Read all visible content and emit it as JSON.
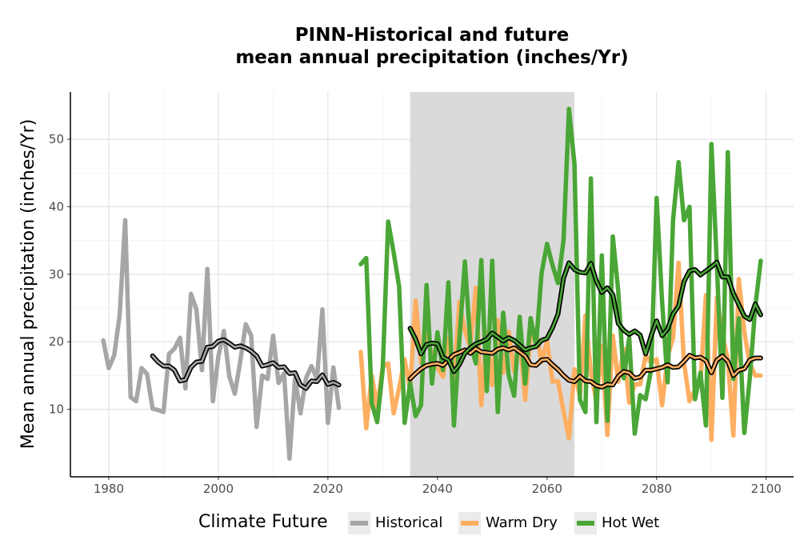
{
  "chart_data": {
    "type": "line",
    "title": "PINN-Historical and future",
    "subtitle": "mean annual precipitation (inches/Yr)",
    "xlabel": "",
    "ylabel": "Mean annual precipitation (inches/Yr)",
    "xlim": [
      1973,
      2105
    ],
    "ylim": [
      0,
      57
    ],
    "x_ticks": [
      1980,
      2000,
      2020,
      2040,
      2060,
      2080,
      2100
    ],
    "y_ticks": [
      10,
      20,
      30,
      40,
      50
    ],
    "grid": true,
    "shaded_period": [
      2035,
      2065
    ],
    "legend": {
      "title": "Climate Future",
      "position": "bottom",
      "entries": [
        "Historical",
        "Warm Dry",
        "Hot Wet"
      ]
    },
    "colors": {
      "historical": "#a6a6a6",
      "warm_dry": "#fdae61",
      "hot_wet": "#4aa636",
      "smooth": "#000000",
      "shade": "#dadada"
    },
    "series": [
      {
        "name": "Historical",
        "color": "#a6a6a6",
        "x": [
          1979,
          1980,
          1981,
          1982,
          1983,
          1984,
          1985,
          1986,
          1987,
          1988,
          1989,
          1990,
          1991,
          1992,
          1993,
          1994,
          1995,
          1996,
          1997,
          1998,
          1999,
          2000,
          2001,
          2002,
          2003,
          2004,
          2005,
          2006,
          2007,
          2008,
          2009,
          2010,
          2011,
          2012,
          2013,
          2014,
          2015,
          2016,
          2017,
          2018,
          2019,
          2020,
          2021,
          2022
        ],
        "values": [
          20.2,
          16.1,
          18,
          24,
          38,
          11.8,
          11.2,
          16.1,
          15.2,
          10.1,
          9.9,
          9.6,
          18.2,
          19,
          20.6,
          13.1,
          27.1,
          24.8,
          15.8,
          30.8,
          11.2,
          17.8,
          21.6,
          14.9,
          12.3,
          17.1,
          22.6,
          20.9,
          7.4,
          15,
          14.5,
          20.9,
          13.9,
          15.3,
          2.7,
          14.6,
          9.4,
          14.6,
          16.4,
          14.5,
          24.8,
          8,
          16.2,
          10.2
        ]
      },
      {
        "name": "Historical (smoothed)",
        "color": "#000000",
        "x": [
          1988,
          1989,
          1990,
          1991,
          1992,
          1993,
          1994,
          1995,
          1996,
          1997,
          1998,
          1999,
          2000,
          2001,
          2002,
          2003,
          2004,
          2005,
          2006,
          2007,
          2008,
          2009,
          2010,
          2011,
          2012,
          2013,
          2014,
          2015,
          2016,
          2017,
          2018,
          2019,
          2020,
          2021,
          2022
        ],
        "values": [
          17.9,
          17,
          16.4,
          16.4,
          15.8,
          14.2,
          14.4,
          16.2,
          17,
          17.1,
          19.2,
          19.3,
          20.1,
          20.3,
          19.8,
          19.2,
          19.4,
          19.1,
          18.6,
          17.9,
          16.4,
          16.6,
          16.9,
          16.2,
          16.3,
          15.3,
          15.4,
          13.6,
          13.1,
          14.2,
          14.1,
          15.1,
          13.7,
          14,
          13.6
        ]
      },
      {
        "name": "Warm Dry",
        "color": "#fdae61",
        "x": [
          2026,
          2027,
          2028,
          2029,
          2030,
          2031,
          2032,
          2033,
          2034,
          2035,
          2036,
          2037,
          2038,
          2039,
          2040,
          2041,
          2042,
          2043,
          2044,
          2045,
          2046,
          2047,
          2048,
          2049,
          2050,
          2051,
          2052,
          2053,
          2054,
          2055,
          2056,
          2057,
          2058,
          2059,
          2060,
          2061,
          2062,
          2063,
          2064,
          2065,
          2066,
          2067,
          2068,
          2069,
          2070,
          2071,
          2072,
          2073,
          2074,
          2075,
          2076,
          2077,
          2078,
          2079,
          2080,
          2081,
          2082,
          2083,
          2084,
          2085,
          2086,
          2087,
          2088,
          2089,
          2090,
          2091,
          2092,
          2093,
          2094,
          2095,
          2096,
          2097,
          2098,
          2099
        ],
        "values": [
          18.5,
          7.2,
          15,
          10.3,
          16.3,
          16.8,
          9.4,
          13.2,
          17.4,
          12.8,
          26.1,
          16.9,
          21.2,
          18,
          16.2,
          14.8,
          20.5,
          14.2,
          25.9,
          21.6,
          19.2,
          28,
          10.6,
          21.4,
          13.6,
          23.2,
          15.4,
          21.5,
          15.6,
          20.6,
          11.4,
          21,
          21.4,
          17,
          20.1,
          14.1,
          14.2,
          9.7,
          5.7,
          15.9,
          11.8,
          23.9,
          15.4,
          11.2,
          19.4,
          6.2,
          20.9,
          14.1,
          18.9,
          11,
          13.7,
          13.7,
          18,
          16.9,
          17.4,
          10.6,
          17.8,
          20.6,
          31.7,
          16.9,
          11.2,
          12.9,
          14.1,
          26.9,
          5.5,
          26.6,
          20.9,
          17.5,
          6.1,
          29.3,
          21.4,
          16.8,
          15,
          15
        ]
      },
      {
        "name": "Warm Dry (smoothed)",
        "color": "#000000",
        "x": [
          2035,
          2036,
          2037,
          2038,
          2039,
          2040,
          2041,
          2042,
          2043,
          2044,
          2045,
          2046,
          2047,
          2048,
          2049,
          2050,
          2051,
          2052,
          2053,
          2054,
          2055,
          2056,
          2057,
          2058,
          2059,
          2060,
          2061,
          2062,
          2063,
          2064,
          2065,
          2066,
          2067,
          2068,
          2069,
          2070,
          2071,
          2072,
          2073,
          2074,
          2075,
          2076,
          2077,
          2078,
          2079,
          2080,
          2081,
          2082,
          2083,
          2084,
          2085,
          2086,
          2087,
          2088,
          2089,
          2090,
          2091,
          2092,
          2093,
          2094,
          2095,
          2096,
          2097,
          2098,
          2099
        ],
        "values": [
          14.5,
          15.3,
          16,
          16.5,
          16.7,
          16.8,
          16.5,
          17.3,
          18.1,
          18.4,
          18.8,
          18.3,
          19,
          18.5,
          18.4,
          18.3,
          18.9,
          19.1,
          18.8,
          19.1,
          18.5,
          17.9,
          16.6,
          16.5,
          17.3,
          17.4,
          16.6,
          15.9,
          15,
          14.3,
          14.1,
          14.9,
          14.2,
          14.1,
          13.5,
          13.3,
          13.7,
          13.6,
          14.9,
          15.6,
          15.4,
          14.6,
          14.8,
          15.8,
          15.8,
          16,
          16.2,
          16.6,
          16.2,
          16.3,
          17.1,
          18,
          17.6,
          17.7,
          17.2,
          15.4,
          17.3,
          17.9,
          17.1,
          15,
          15.8,
          16,
          17.3,
          17.6,
          17.6
        ]
      },
      {
        "name": "Hot Wet",
        "color": "#4aa636",
        "x": [
          2026,
          2027,
          2028,
          2029,
          2030,
          2031,
          2032,
          2033,
          2034,
          2035,
          2036,
          2037,
          2038,
          2039,
          2040,
          2041,
          2042,
          2043,
          2044,
          2045,
          2046,
          2047,
          2048,
          2049,
          2050,
          2051,
          2052,
          2053,
          2054,
          2055,
          2056,
          2057,
          2058,
          2059,
          2060,
          2061,
          2062,
          2063,
          2064,
          2065,
          2066,
          2067,
          2068,
          2069,
          2070,
          2071,
          2072,
          2073,
          2074,
          2075,
          2076,
          2077,
          2078,
          2079,
          2080,
          2081,
          2082,
          2083,
          2084,
          2085,
          2086,
          2087,
          2088,
          2089,
          2090,
          2091,
          2092,
          2093,
          2094,
          2095,
          2096,
          2097,
          2098,
          2099
        ],
        "values": [
          31.5,
          32.4,
          10.9,
          8.1,
          15.9,
          37.8,
          33.2,
          28.2,
          8,
          13.9,
          9,
          10.6,
          28.4,
          13.8,
          21.4,
          15.8,
          28.8,
          7.6,
          20.3,
          31.9,
          19.8,
          16.8,
          32.1,
          12.7,
          32,
          9.6,
          24.3,
          15,
          12,
          23.7,
          13.8,
          23.5,
          19.5,
          30.2,
          34.5,
          31.3,
          28.7,
          35,
          54.5,
          46.3,
          11.4,
          9.6,
          44.2,
          8.1,
          32.8,
          8.3,
          35.6,
          27.5,
          14.6,
          20.6,
          6.4,
          12.1,
          11.5,
          15.9,
          41.3,
          26,
          14,
          38,
          46.6,
          38,
          40,
          11.5,
          15.4,
          7.6,
          49.3,
          31.4,
          11.7,
          48.1,
          14.5,
          23.5,
          6.5,
          14.6,
          25.2,
          32
        ]
      },
      {
        "name": "Hot Wet (smoothed)",
        "color": "#000000",
        "x": [
          2035,
          2036,
          2037,
          2038,
          2039,
          2040,
          2041,
          2042,
          2043,
          2044,
          2045,
          2046,
          2047,
          2048,
          2049,
          2050,
          2051,
          2052,
          2053,
          2054,
          2055,
          2056,
          2057,
          2058,
          2059,
          2060,
          2061,
          2062,
          2063,
          2064,
          2065,
          2066,
          2067,
          2068,
          2069,
          2070,
          2071,
          2072,
          2073,
          2074,
          2075,
          2076,
          2077,
          2078,
          2079,
          2080,
          2081,
          2082,
          2083,
          2084,
          2085,
          2086,
          2087,
          2088,
          2089,
          2090,
          2091,
          2092,
          2093,
          2094,
          2095,
          2096,
          2097,
          2098,
          2099
        ],
        "values": [
          22,
          20.4,
          18.2,
          19.6,
          19.8,
          19.7,
          17.7,
          17.3,
          15.6,
          16.6,
          18.3,
          19.1,
          19.7,
          20,
          20.4,
          21.3,
          20.7,
          20.1,
          20.6,
          20.2,
          19.5,
          18.8,
          19.1,
          19.3,
          20.2,
          20.5,
          22.1,
          24.1,
          29.4,
          31.7,
          30.7,
          30.3,
          30.2,
          31.6,
          29,
          27.3,
          28,
          27,
          22.7,
          21.7,
          21.1,
          21.6,
          21,
          18.2,
          20.9,
          23.1,
          20.9,
          21.9,
          24.1,
          25.3,
          28.9,
          30.5,
          30.7,
          29.9,
          30.5,
          31.1,
          31.8,
          29.6,
          29.6,
          27.2,
          25.5,
          23.8,
          23.3,
          25.6,
          24
        ]
      }
    ]
  }
}
